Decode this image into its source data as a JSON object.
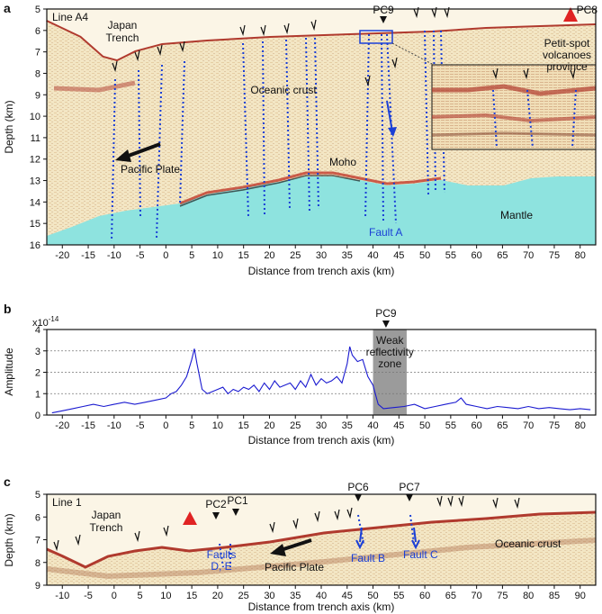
{
  "figure": {
    "panel_a": {
      "letter": "a",
      "line_label": "Line A4",
      "ylabel": "Depth (km)",
      "xlabel": "Distance from trench axis (km)",
      "x_ticks": [
        "-20",
        "-15",
        "-10",
        "-5",
        "0",
        "5",
        "10",
        "15",
        "20",
        "25",
        "30",
        "35",
        "40",
        "45",
        "50",
        "55",
        "60",
        "65",
        "70",
        "75",
        "80"
      ],
      "y_ticks": [
        "5",
        "6",
        "7",
        "8",
        "9",
        "10",
        "11",
        "12",
        "13",
        "14",
        "15",
        "16"
      ],
      "annotations": {
        "trench": [
          "Japan",
          "Trench"
        ],
        "oceanic_crust": "Oceanic crust",
        "pacific_plate": "Pacific Plate",
        "moho": "Moho",
        "mantle": "Mantle",
        "fault_a": "Fault A",
        "petit_spot": [
          "Petit-spot",
          "volcanoes",
          "province"
        ],
        "pc9": "PC9",
        "pc8": "PC8"
      }
    },
    "panel_b": {
      "letter": "b",
      "ylabel": "Amplitude",
      "xlabel": "Distance from trench axis (km)",
      "multiplier": "x10",
      "multiplier_exp": "-14",
      "pc9": "PC9",
      "zone_label": [
        "Weak",
        "reflectivity",
        "zone"
      ],
      "x_ticks": [
        "-20",
        "-15",
        "-10",
        "-5",
        "0",
        "5",
        "10",
        "15",
        "20",
        "25",
        "30",
        "35",
        "40",
        "45",
        "50",
        "55",
        "60",
        "65",
        "70",
        "75",
        "80"
      ],
      "y_ticks": [
        "0",
        "1",
        "2",
        "3",
        "4"
      ]
    },
    "panel_c": {
      "letter": "c",
      "line_label": "Line 1",
      "ylabel": "Depth (km)",
      "xlabel": "Distance from trench axis (km)",
      "x_ticks": [
        "-10",
        "-5",
        "0",
        "5",
        "10",
        "15",
        "20",
        "25",
        "30",
        "35",
        "40",
        "45",
        "50",
        "55",
        "60",
        "65",
        "70",
        "75",
        "80",
        "85",
        "90"
      ],
      "y_ticks": [
        "5",
        "6",
        "7",
        "8",
        "9"
      ],
      "annotations": {
        "trench": [
          "Japan",
          "Trench"
        ],
        "pc2": "PC2",
        "pc1": "PC1",
        "pc6": "PC6",
        "pc7": "PC7",
        "faults_de": [
          "Faults",
          "D, E"
        ],
        "pacific_plate": "Pacific Plate",
        "fault_b": "Fault B",
        "fault_c": "Fault C",
        "oceanic_crust": "Oceanic crust"
      }
    }
  },
  "chart_data": {
    "type": "line",
    "panel": "b",
    "xlabel": "Distance from trench axis (km)",
    "ylabel": "Amplitude",
    "y_multiplier": "x10^-14",
    "xlim": [
      -23,
      83
    ],
    "ylim": [
      0,
      4
    ],
    "grid": "horizontal dotted at 1, 2, 3",
    "shaded_zone": {
      "label": "Weak reflectivity zone",
      "x_range": [
        40,
        46.5
      ]
    },
    "marker": {
      "label": "PC9",
      "x": 42.5
    },
    "x": [
      -22,
      -20,
      -18,
      -16,
      -14,
      -12,
      -10,
      -8,
      -6,
      -4,
      -2,
      0,
      1,
      2,
      3,
      4,
      5,
      5.5,
      6,
      7,
      8,
      9,
      10,
      11,
      12,
      13,
      14,
      15,
      16,
      17,
      18,
      19,
      20,
      21,
      22,
      23,
      24,
      25,
      26,
      27,
      28,
      29,
      30,
      31,
      32,
      33,
      34,
      35,
      35.5,
      36,
      37,
      38,
      39,
      40,
      41,
      42,
      44,
      46,
      48,
      50,
      52,
      54,
      56,
      57,
      58,
      60,
      62,
      64,
      66,
      68,
      70,
      72,
      74,
      76,
      78,
      80,
      82
    ],
    "values": [
      0.1,
      0.2,
      0.3,
      0.4,
      0.5,
      0.4,
      0.5,
      0.6,
      0.5,
      0.6,
      0.7,
      0.8,
      1.0,
      1.1,
      1.4,
      1.8,
      2.6,
      3.1,
      2.4,
      1.2,
      1.0,
      1.1,
      1.2,
      1.3,
      1.0,
      1.2,
      1.1,
      1.3,
      1.2,
      1.4,
      1.1,
      1.5,
      1.2,
      1.6,
      1.3,
      1.4,
      1.5,
      1.2,
      1.6,
      1.3,
      1.9,
      1.4,
      1.7,
      1.5,
      1.6,
      1.8,
      1.5,
      2.4,
      3.2,
      2.8,
      2.5,
      2.6,
      1.8,
      1.4,
      0.5,
      0.3,
      0.35,
      0.4,
      0.5,
      0.3,
      0.4,
      0.5,
      0.6,
      0.8,
      0.5,
      0.4,
      0.3,
      0.4,
      0.35,
      0.3,
      0.4,
      0.3,
      0.35,
      0.3,
      0.25,
      0.3,
      0.25
    ]
  }
}
